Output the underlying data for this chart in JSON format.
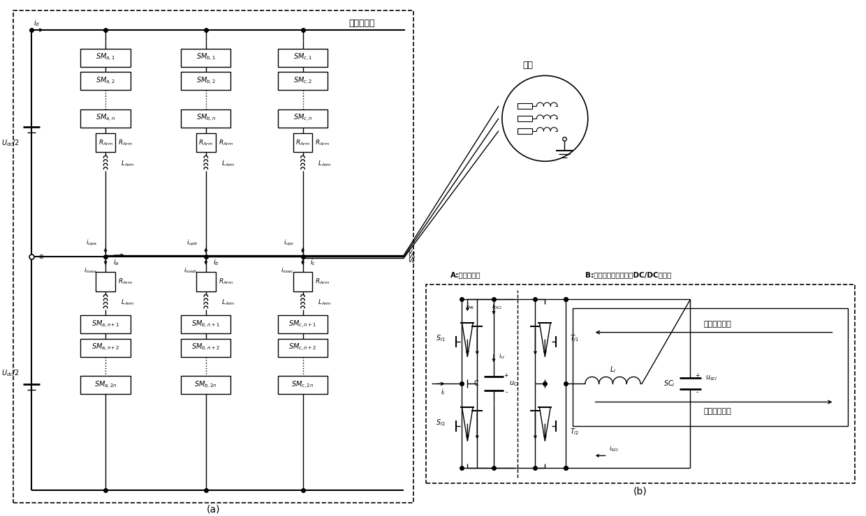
{
  "bg_color": "#ffffff",
  "title_a": "功率主电路",
  "label_a": "(a)",
  "label_b": "(b)",
  "label_fz": "负载",
  "label_A": "A:传统子模块",
  "label_B": "B:超级电容储能型双向DC/DC变换器",
  "label_forward": "正向能量流动",
  "label_backward": "反向能量流动",
  "Udc_top": "U_{dc}/2",
  "Udc_bot": "U_{dc}/2"
}
